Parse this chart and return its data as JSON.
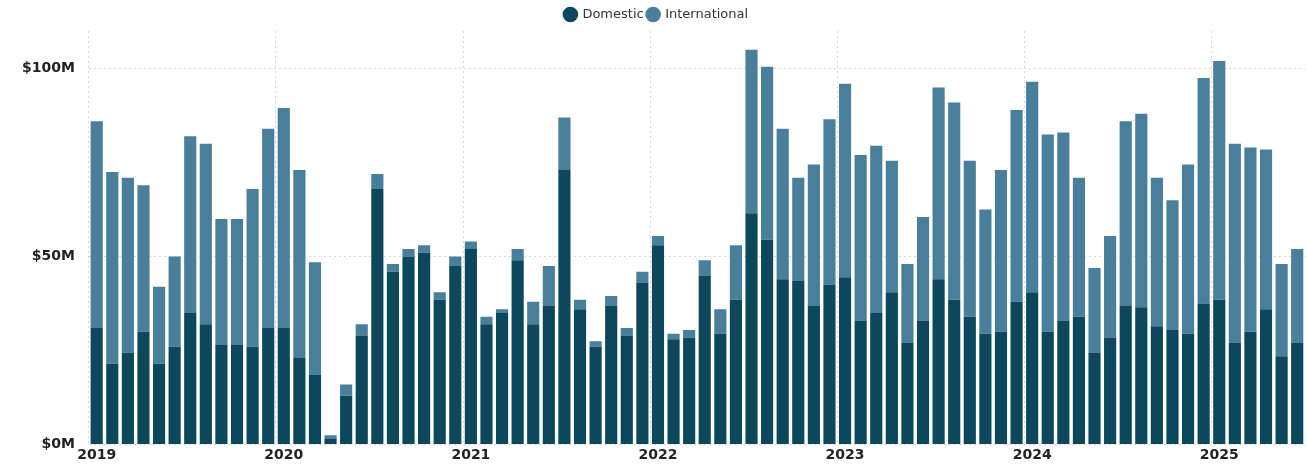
{
  "chart_data": {
    "type": "bar",
    "stacked": true,
    "legend": "top",
    "grid": true,
    "categories": [
      "2019",
      null,
      null,
      null,
      null,
      null,
      null,
      null,
      null,
      null,
      null,
      null,
      "2020",
      null,
      null,
      null,
      null,
      null,
      null,
      null,
      null,
      null,
      null,
      null,
      "2021",
      null,
      null,
      null,
      null,
      null,
      null,
      null,
      null,
      null,
      null,
      null,
      "2022",
      null,
      null,
      null,
      null,
      null,
      null,
      null,
      null,
      null,
      null,
      null,
      "2023",
      null,
      null,
      null,
      null,
      null,
      null,
      null,
      null,
      null,
      null,
      null,
      "2024",
      null,
      null,
      null,
      null,
      null,
      null,
      null,
      null,
      null,
      null,
      null,
      "2025",
      null,
      null,
      null,
      null,
      null
    ],
    "series": [
      {
        "name": "Domestic",
        "color": "#0d475c",
        "values": [
          31,
          21.5,
          24.5,
          30,
          21.5,
          26,
          35,
          32,
          26.5,
          26.5,
          26,
          31,
          31,
          23,
          18.5,
          1.5,
          13,
          29,
          68,
          46,
          50,
          51,
          38.5,
          47.5,
          52,
          32,
          35,
          49,
          32,
          37,
          73,
          36,
          26,
          37,
          29,
          43,
          53,
          28,
          28.5,
          45,
          29.5,
          38.5,
          61.5,
          54.5,
          44,
          43.5,
          37,
          42.5,
          44.5,
          33,
          35,
          40.5,
          27,
          33,
          44,
          38.5,
          34,
          29.5,
          30,
          38,
          40.5,
          30,
          33,
          34,
          24.5,
          28.5,
          37,
          36.5,
          31.5,
          30.5,
          29.5,
          37.5,
          38.5,
          27,
          30,
          36,
          23.5,
          27
        ]
      },
      {
        "name": "International",
        "color": "#4a7f9c",
        "values": [
          55,
          51,
          46.5,
          39,
          20.5,
          24,
          47,
          48,
          33.5,
          33.5,
          42,
          53,
          58.5,
          50,
          30,
          1,
          3,
          3,
          4,
          2,
          2,
          2,
          2,
          2.5,
          2,
          2,
          1,
          3,
          6,
          10.5,
          14,
          2.5,
          1.5,
          2.5,
          2,
          3,
          2.5,
          1.5,
          2,
          4,
          6.5,
          14.5,
          43.5,
          46,
          40,
          27.5,
          37.5,
          44,
          51.5,
          44,
          44.5,
          35,
          21,
          27.5,
          51,
          52.5,
          41.5,
          33,
          43,
          51,
          56,
          52.5,
          50,
          37,
          22.5,
          27,
          49,
          51.5,
          39.5,
          34.5,
          45,
          60,
          63.5,
          53,
          49,
          42.5,
          24.5,
          25
        ]
      }
    ],
    "ylim": [
      0,
      110
    ],
    "yticks": [
      {
        "value": 0,
        "label": "$0M"
      },
      {
        "value": 50,
        "label": "$50M"
      },
      {
        "value": 100,
        "label": "$100M"
      }
    ]
  }
}
